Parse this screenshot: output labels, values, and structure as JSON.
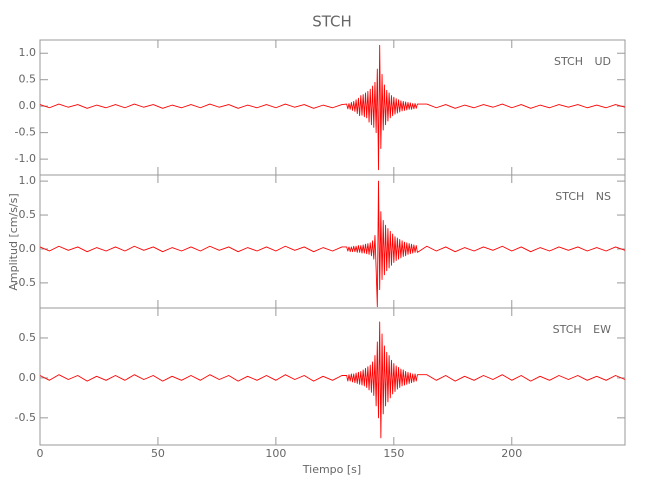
{
  "chart_data": [
    {
      "type": "line",
      "title": "STCH",
      "label": "STCH UD",
      "x": [
        0,
        4,
        8,
        12,
        16,
        20,
        24,
        28,
        32,
        36,
        40,
        44,
        48,
        52,
        56,
        60,
        64,
        68,
        72,
        76,
        80,
        84,
        88,
        92,
        96,
        100,
        104,
        108,
        112,
        116,
        120,
        124,
        128,
        130,
        130.5,
        131,
        131.5,
        132,
        132.5,
        133,
        133.5,
        134,
        134.5,
        135,
        135.5,
        136,
        136.5,
        137,
        137.5,
        138,
        138.5,
        139,
        139.5,
        140,
        140.5,
        141,
        141.5,
        142,
        142.5,
        143,
        143.5,
        144,
        144.5,
        145,
        145.5,
        146,
        146.5,
        147,
        147.5,
        148,
        148.5,
        149,
        149.5,
        150,
        150.5,
        151,
        151.5,
        152,
        152.5,
        153,
        153.5,
        154,
        154.5,
        155,
        155.5,
        156,
        156.5,
        157,
        157.5,
        158,
        158.5,
        159,
        159.5,
        160,
        164,
        168,
        172,
        176,
        180,
        184,
        188,
        192,
        196,
        200,
        204,
        208,
        212,
        216,
        220,
        224,
        228,
        232,
        236,
        240,
        244,
        248
      ],
      "series": [
        {
          "color": "#ff0000",
          "values": [
            0.03,
            -0.03,
            0.04,
            -0.02,
            0.03,
            -0.04,
            0.02,
            -0.03,
            0.03,
            -0.03,
            0.04,
            -0.02,
            0.03,
            -0.04,
            0.02,
            -0.03,
            0.03,
            -0.03,
            0.04,
            -0.02,
            0.03,
            -0.04,
            0.02,
            -0.03,
            0.03,
            -0.03,
            0.04,
            -0.02,
            0.03,
            -0.04,
            0.02,
            -0.03,
            0.03,
            0.04,
            -0.05,
            0.05,
            -0.06,
            0.07,
            -0.08,
            0.09,
            -0.1,
            0.12,
            -0.14,
            0.15,
            -0.18,
            0.2,
            -0.17,
            0.22,
            -0.2,
            0.25,
            -0.22,
            0.28,
            -0.3,
            0.32,
            -0.35,
            0.38,
            -0.4,
            0.45,
            -0.5,
            0.7,
            -1.2,
            1.15,
            -0.8,
            0.6,
            -0.45,
            0.4,
            -0.35,
            0.3,
            -0.28,
            0.25,
            -0.22,
            0.2,
            -0.18,
            0.17,
            -0.15,
            0.14,
            -0.13,
            0.12,
            -0.11,
            0.1,
            -0.09,
            0.09,
            -0.08,
            0.08,
            -0.07,
            0.07,
            -0.06,
            0.06,
            -0.06,
            0.05,
            -0.05,
            0.05,
            -0.04,
            0.04,
            0.04,
            -0.03,
            0.03,
            -0.04,
            0.02,
            -0.03,
            0.03,
            -0.02,
            0.04,
            -0.03,
            0.03,
            -0.04,
            0.02,
            -0.03,
            0.03,
            -0.02,
            0.03,
            -0.03,
            0.02,
            -0.03,
            0.03,
            -0.02
          ]
        }
      ],
      "xlim": [
        0,
        248
      ],
      "xticks": [
        0,
        50,
        100,
        150,
        200
      ],
      "ylim": [
        -1.3,
        1.25
      ],
      "yticks": [
        {
          "value": -1,
          "label": "-1.0"
        },
        -0.5,
        {
          "value": 0,
          "label": "0.0"
        },
        0.5,
        {
          "value": 1,
          "label": "1.0"
        }
      ]
    },
    {
      "type": "line",
      "ylabel": "Amplitud [cm/s/s]",
      "label": "STCH NS",
      "x": [
        0,
        4,
        8,
        12,
        16,
        20,
        24,
        28,
        32,
        36,
        40,
        44,
        48,
        52,
        56,
        60,
        64,
        68,
        72,
        76,
        80,
        84,
        88,
        92,
        96,
        100,
        104,
        108,
        112,
        116,
        120,
        124,
        128,
        130,
        130.5,
        131,
        131.5,
        132,
        132.5,
        133,
        133.5,
        134,
        134.5,
        135,
        135.5,
        136,
        136.5,
        137,
        137.5,
        138,
        138.5,
        139,
        139.5,
        140,
        140.5,
        141,
        141.5,
        142,
        142.5,
        143,
        143.5,
        144,
        144.5,
        145,
        145.5,
        146,
        146.5,
        147,
        147.5,
        148,
        148.5,
        149,
        149.5,
        150,
        150.5,
        151,
        151.5,
        152,
        152.5,
        153,
        153.5,
        154,
        154.5,
        155,
        155.5,
        156,
        156.5,
        157,
        157.5,
        158,
        158.5,
        159,
        159.5,
        160,
        164,
        168,
        172,
        176,
        180,
        184,
        188,
        192,
        196,
        200,
        204,
        208,
        212,
        216,
        220,
        224,
        228,
        232,
        236,
        240,
        244,
        248
      ],
      "series": [
        {
          "color": "#ff0000",
          "values": [
            0.03,
            -0.03,
            0.04,
            -0.02,
            0.03,
            -0.04,
            0.02,
            -0.03,
            0.03,
            -0.03,
            0.04,
            -0.02,
            0.03,
            -0.04,
            0.02,
            -0.03,
            0.03,
            -0.03,
            0.04,
            -0.02,
            0.03,
            -0.04,
            0.02,
            -0.03,
            0.03,
            -0.03,
            0.04,
            -0.02,
            0.03,
            -0.04,
            0.02,
            -0.03,
            0.03,
            0.03,
            -0.03,
            0.03,
            -0.04,
            0.03,
            -0.04,
            0.04,
            -0.04,
            0.04,
            -0.05,
            0.05,
            -0.05,
            0.05,
            -0.06,
            0.06,
            -0.06,
            0.07,
            -0.07,
            0.08,
            -0.08,
            0.09,
            -0.1,
            0.12,
            -0.15,
            0.2,
            -0.3,
            -0.85,
            1.0,
            -0.6,
            0.55,
            -0.45,
            0.42,
            -0.38,
            0.35,
            -0.32,
            0.3,
            -0.28,
            0.26,
            -0.24,
            0.22,
            -0.2,
            0.18,
            -0.17,
            0.16,
            -0.15,
            0.14,
            -0.13,
            0.12,
            -0.11,
            0.1,
            -0.1,
            0.09,
            -0.08,
            0.08,
            -0.07,
            0.07,
            -0.06,
            0.06,
            -0.05,
            0.05,
            -0.05,
            0.04,
            -0.03,
            0.03,
            -0.04,
            0.02,
            -0.03,
            0.03,
            -0.02,
            0.04,
            -0.03,
            0.03,
            -0.04,
            0.02,
            -0.03,
            0.03,
            -0.02,
            0.03,
            -0.03,
            0.02,
            -0.03,
            0.03,
            -0.02
          ]
        }
      ],
      "xlim": [
        0,
        248
      ],
      "xticks": [
        0,
        50,
        100,
        150,
        200
      ],
      "ylim": [
        -0.87,
        1.09
      ],
      "yticks": [
        -0.5,
        {
          "value": 0,
          "label": "0.0"
        },
        0.5,
        {
          "value": 1,
          "label": "1.0"
        }
      ]
    },
    {
      "type": "line",
      "xlabel": "Tiempo [s]",
      "label": "STCH EW",
      "x": [
        0,
        4,
        8,
        12,
        16,
        20,
        24,
        28,
        32,
        36,
        40,
        44,
        48,
        52,
        56,
        60,
        64,
        68,
        72,
        76,
        80,
        84,
        88,
        92,
        96,
        100,
        104,
        108,
        112,
        116,
        120,
        124,
        128,
        130,
        130.5,
        131,
        131.5,
        132,
        132.5,
        133,
        133.5,
        134,
        134.5,
        135,
        135.5,
        136,
        136.5,
        137,
        137.5,
        138,
        138.5,
        139,
        139.5,
        140,
        140.5,
        141,
        141.5,
        142,
        142.5,
        143,
        143.5,
        144,
        144.5,
        145,
        145.5,
        146,
        146.5,
        147,
        147.5,
        148,
        148.5,
        149,
        149.5,
        150,
        150.5,
        151,
        151.5,
        152,
        152.5,
        153,
        153.5,
        154,
        154.5,
        155,
        155.5,
        156,
        156.5,
        157,
        157.5,
        158,
        158.5,
        159,
        159.5,
        160,
        164,
        168,
        172,
        176,
        180,
        184,
        188,
        192,
        196,
        200,
        204,
        208,
        212,
        216,
        220,
        224,
        228,
        232,
        236,
        240,
        244,
        248
      ],
      "series": [
        {
          "color": "#ff0000",
          "values": [
            0.03,
            -0.03,
            0.04,
            -0.02,
            0.03,
            -0.04,
            0.02,
            -0.03,
            0.03,
            -0.03,
            0.04,
            -0.02,
            0.03,
            -0.04,
            0.02,
            -0.03,
            0.03,
            -0.03,
            0.04,
            -0.02,
            0.03,
            -0.04,
            0.02,
            -0.03,
            0.03,
            -0.03,
            0.04,
            -0.02,
            0.03,
            -0.04,
            0.02,
            -0.03,
            0.03,
            0.03,
            -0.04,
            0.04,
            -0.04,
            0.05,
            -0.05,
            0.05,
            -0.06,
            0.06,
            -0.07,
            0.07,
            -0.08,
            0.08,
            -0.09,
            0.1,
            -0.1,
            0.12,
            -0.12,
            0.14,
            -0.15,
            0.16,
            -0.18,
            0.2,
            -0.22,
            0.28,
            -0.35,
            0.45,
            -0.5,
            0.7,
            -0.75,
            0.55,
            -0.45,
            0.4,
            -0.35,
            0.32,
            -0.3,
            0.28,
            -0.25,
            0.22,
            -0.2,
            0.18,
            -0.17,
            0.15,
            -0.14,
            0.13,
            -0.12,
            0.11,
            -0.1,
            0.1,
            -0.09,
            0.08,
            -0.08,
            0.07,
            -0.07,
            0.06,
            -0.06,
            0.05,
            -0.05,
            0.05,
            -0.04,
            0.04,
            0.04,
            -0.03,
            0.03,
            -0.04,
            0.02,
            -0.03,
            0.03,
            -0.02,
            0.04,
            -0.03,
            0.03,
            -0.04,
            0.02,
            -0.03,
            0.03,
            -0.02,
            0.03,
            -0.03,
            0.02,
            -0.03,
            0.03,
            -0.02
          ]
        }
      ],
      "xlim": [
        0,
        248
      ],
      "xticks": [
        0,
        50,
        100,
        150,
        200
      ],
      "ylim": [
        -0.84,
        0.875
      ],
      "yticks": [
        -0.5,
        {
          "value": 0,
          "label": "0.0"
        },
        0.5
      ]
    }
  ]
}
